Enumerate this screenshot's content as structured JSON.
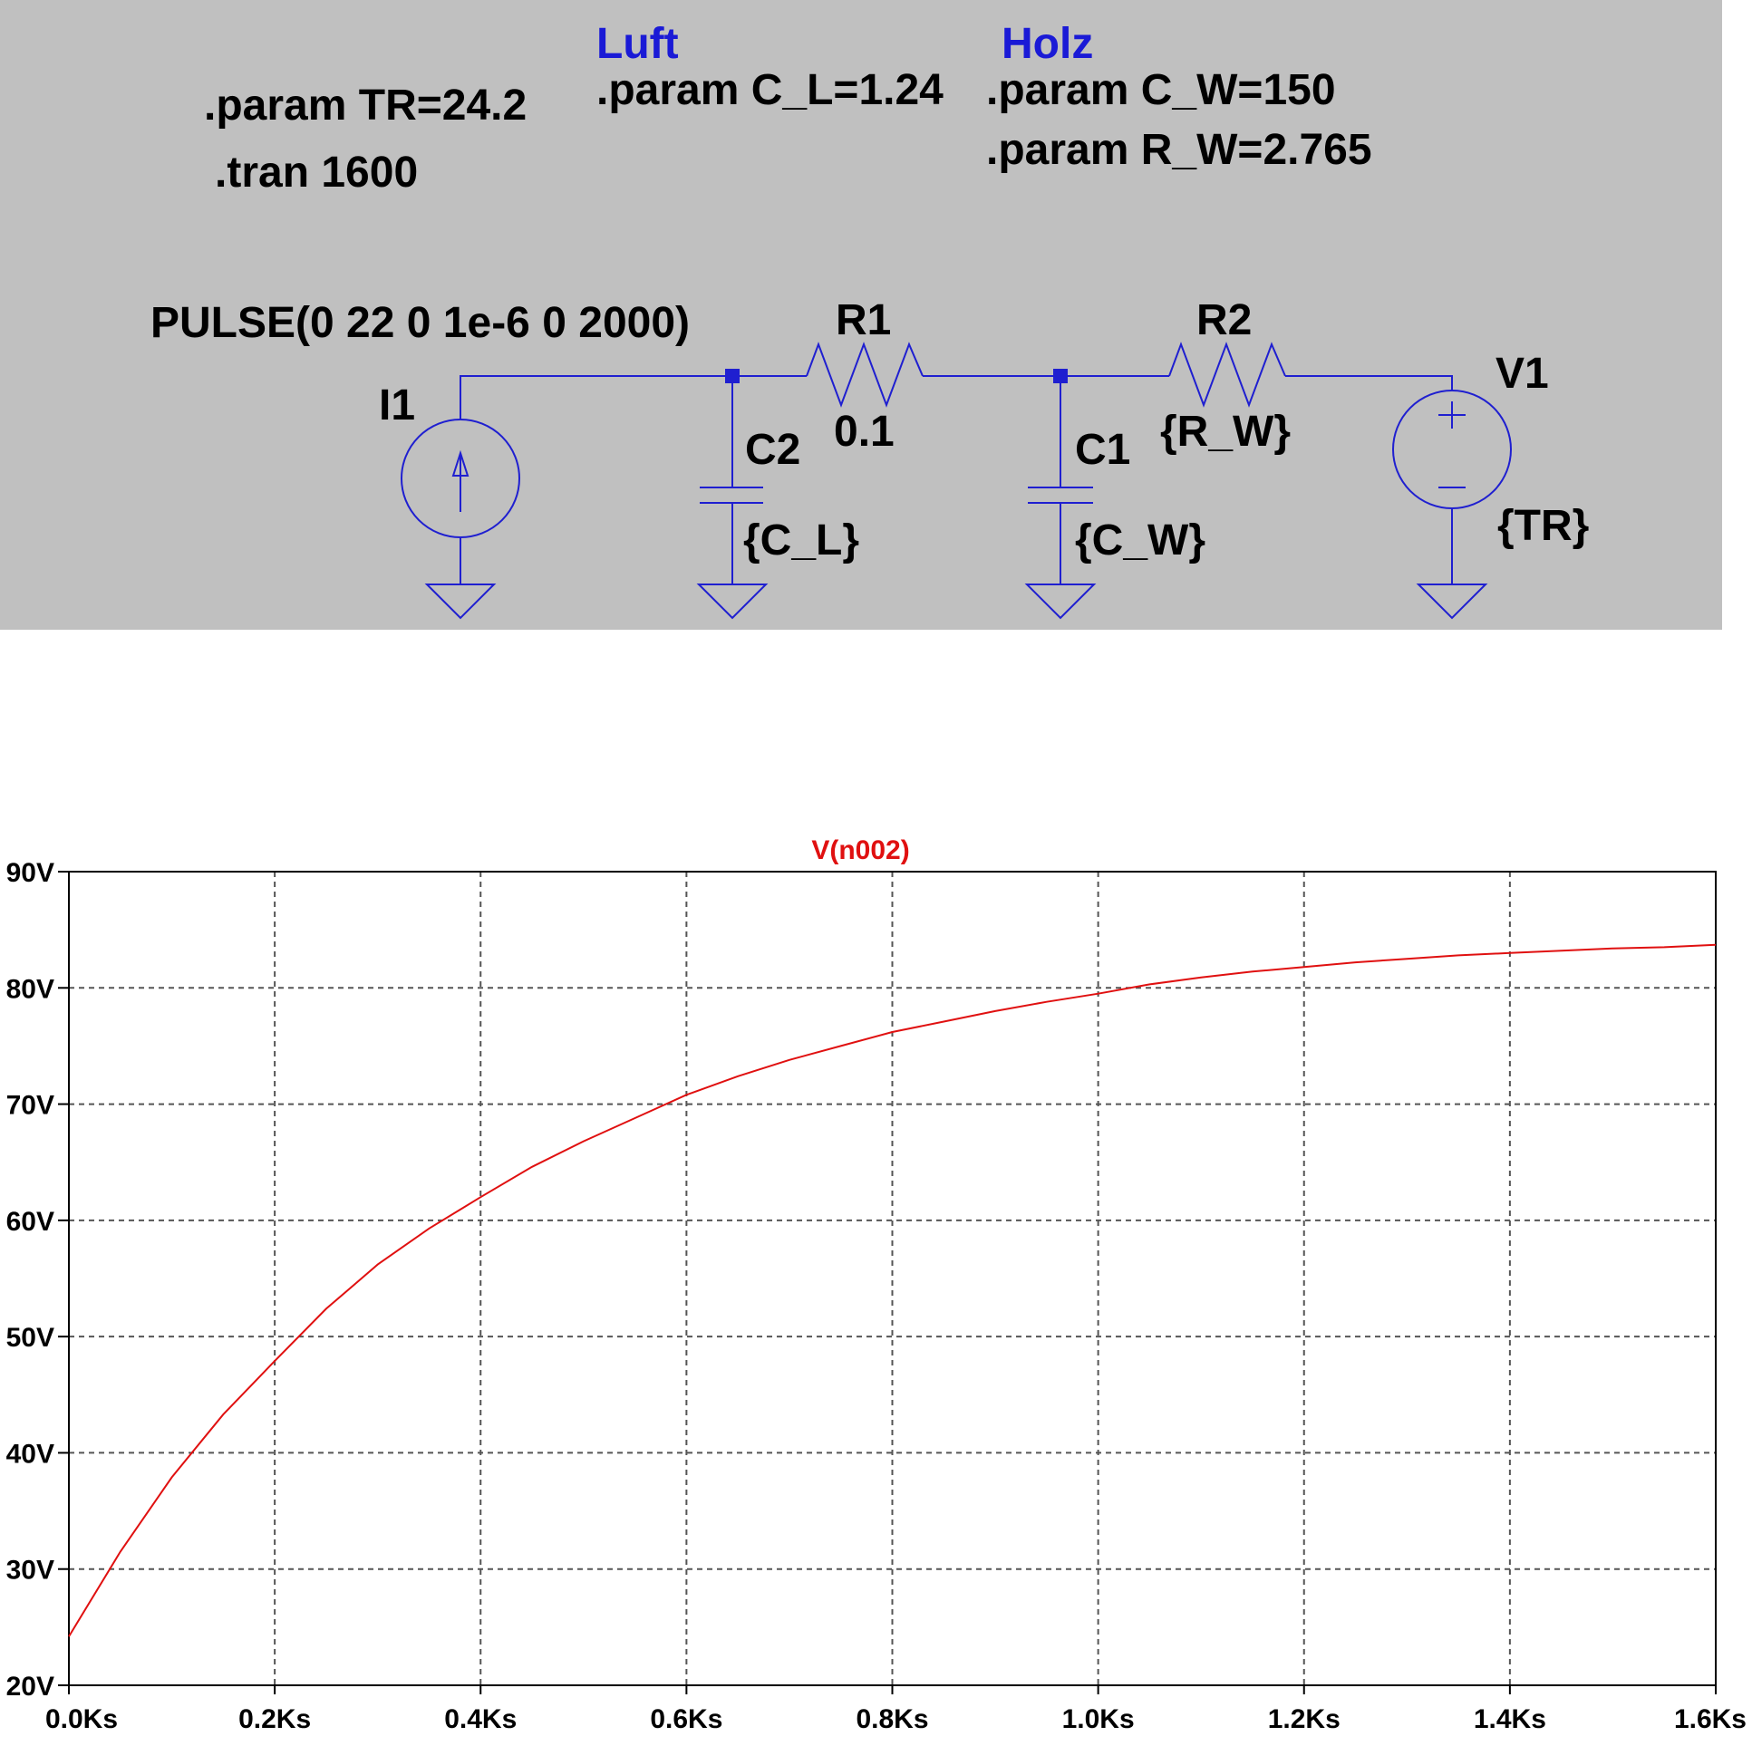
{
  "schematic": {
    "directives": {
      "param_tr": ".param TR=24.2",
      "tran": ".tran 1600",
      "param_cl": ".param C_L=1.24",
      "param_cw": ".param C_W=150",
      "param_rw": ".param R_W=2.765"
    },
    "comments": {
      "luft": "Luft",
      "holz": "Holz"
    },
    "components": {
      "i1": {
        "name": "I1",
        "value": "PULSE(0 22 0 1e-6 0 2000)"
      },
      "r1": {
        "name": "R1",
        "value": "0.1"
      },
      "r2": {
        "name": "R2",
        "value": "{R_W}"
      },
      "c2": {
        "name": "C2",
        "value": "{C_L}"
      },
      "c1": {
        "name": "C1",
        "value": "{C_W}"
      },
      "v1": {
        "name": "V1",
        "value": "{TR}"
      }
    },
    "colors": {
      "background": "#c0c0c0",
      "wire": "#1f1fd0",
      "comment": "#1a1ad6"
    }
  },
  "chart_data": {
    "type": "line",
    "title": "V(n002)",
    "xlabel": "",
    "ylabel": "",
    "xlim": [
      0,
      1600
    ],
    "ylim": [
      20,
      90
    ],
    "grid": true,
    "x_ticks": [
      "0.0Ks",
      "0.2Ks",
      "0.4Ks",
      "0.6Ks",
      "0.8Ks",
      "1.0Ks",
      "1.2Ks",
      "1.4Ks",
      "1.6Ks"
    ],
    "x_tick_values": [
      0,
      200,
      400,
      600,
      800,
      1000,
      1200,
      1400,
      1600
    ],
    "y_ticks": [
      "20V",
      "30V",
      "40V",
      "50V",
      "60V",
      "70V",
      "80V",
      "90V"
    ],
    "y_tick_values": [
      20,
      30,
      40,
      50,
      60,
      70,
      80,
      90
    ],
    "series": [
      {
        "name": "V(n002)",
        "color": "#e01010",
        "x": [
          0,
          50,
          100,
          150,
          200,
          250,
          300,
          350,
          400,
          450,
          500,
          550,
          600,
          650,
          700,
          750,
          800,
          850,
          900,
          950,
          1000,
          1050,
          1100,
          1150,
          1200,
          1250,
          1300,
          1350,
          1400,
          1450,
          1500,
          1550,
          1600
        ],
        "y": [
          24.2,
          31.5,
          37.9,
          43.3,
          47.9,
          52.4,
          56.2,
          59.3,
          62.0,
          64.6,
          66.8,
          68.8,
          70.8,
          72.4,
          73.8,
          75.0,
          76.2,
          77.1,
          78.0,
          78.8,
          79.5,
          80.3,
          80.9,
          81.4,
          81.8,
          82.2,
          82.5,
          82.8,
          83.0,
          83.2,
          83.4,
          83.5,
          83.7
        ]
      }
    ]
  }
}
